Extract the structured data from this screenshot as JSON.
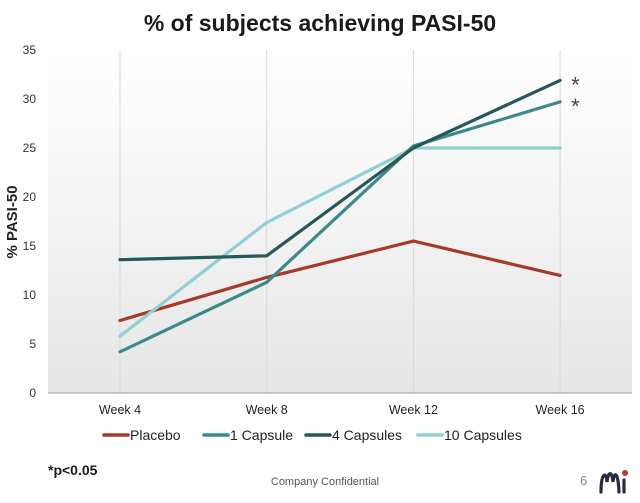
{
  "slide": {
    "footnote": "*p<0.05",
    "confidential": "Company Confidential",
    "page_number": "6"
  },
  "colors": {
    "placebo": "#a63a2a",
    "one_capsule": "#3a8a8a",
    "four_capsules": "#275858",
    "ten_capsules": "#8fd0d4",
    "plot_bg_top": "#ffffff",
    "plot_bg_bottom": "#e6e6e6",
    "logo_dark": "#2a2a3a",
    "logo_red": "#c0392b"
  },
  "chart_data": {
    "type": "line",
    "title": "% of subjects achieving PASI-50",
    "xlabel": "",
    "ylabel": "% PASI-50",
    "categories": [
      "Week 4",
      "Week 8",
      "Week 12",
      "Week 16"
    ],
    "ylim": [
      0,
      35
    ],
    "yticks": [
      0,
      5,
      10,
      15,
      20,
      25,
      30,
      35
    ],
    "grid": "vertical",
    "legend_position": "bottom",
    "series": [
      {
        "name": "Placebo",
        "color_key": "placebo",
        "values": [
          7.4,
          11.8,
          15.5,
          12.0
        ]
      },
      {
        "name": "1 Capsule",
        "color_key": "one_capsule",
        "values": [
          4.2,
          11.3,
          25.2,
          29.7
        ]
      },
      {
        "name": "4 Capsules",
        "color_key": "four_capsules",
        "values": [
          13.6,
          14.0,
          25.0,
          31.9
        ]
      },
      {
        "name": "10 Capsules",
        "color_key": "ten_capsules",
        "values": [
          5.8,
          17.4,
          25.0,
          25.0
        ]
      }
    ],
    "annotations": [
      {
        "text": "*",
        "series": "4 Capsules",
        "category": "Week 16"
      },
      {
        "text": "*",
        "series": "1 Capsule",
        "category": "Week 16"
      }
    ]
  }
}
